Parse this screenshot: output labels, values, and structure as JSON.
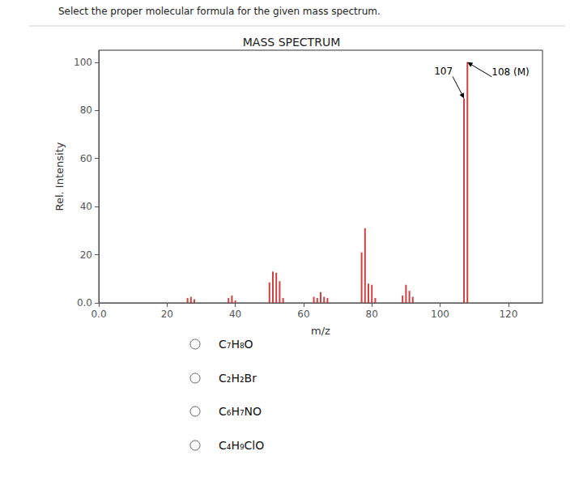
{
  "chart_data": {
    "type": "bar",
    "title": "MASS SPECTRUM",
    "question": "Select the proper molecular formula for the given mass spectrum.",
    "xlabel": "m/z",
    "ylabel": "Rel. Intensity",
    "x": [
      26,
      27,
      28,
      38,
      39,
      40,
      50,
      51,
      52,
      53,
      54,
      63,
      64,
      65,
      66,
      67,
      77,
      78,
      79,
      80,
      81,
      89,
      90,
      91,
      92,
      107,
      108
    ],
    "values": [
      2.0,
      2.5,
      1.5,
      2.0,
      3.0,
      1.0,
      8.5,
      13.0,
      12.5,
      9.0,
      2.0,
      2.5,
      2.0,
      4.5,
      2.5,
      2.0,
      21.0,
      31.0,
      8.0,
      7.5,
      2.0,
      3.0,
      7.5,
      5.0,
      2.5,
      85.0,
      100.0
    ],
    "color": "#d04040",
    "xlim": [
      0.0,
      130
    ],
    "ylim": [
      0.0,
      105
    ],
    "xticks": [
      {
        "value": 0.0,
        "label": "0.0"
      },
      20,
      40,
      60,
      80,
      100,
      120
    ],
    "yticks": [
      {
        "value": 0.0,
        "label": "0.0"
      },
      20,
      40,
      60,
      80,
      100
    ],
    "grid": false,
    "annotations": [
      {
        "text": "107",
        "x": 107,
        "y": 85
      },
      {
        "text": "108 (M)",
        "x": 108,
        "y": 100
      }
    ],
    "choices": [
      "C₇H₈O",
      "C₂H₂Br",
      "C₆H₇NO",
      "C₄H₉ClO"
    ]
  }
}
